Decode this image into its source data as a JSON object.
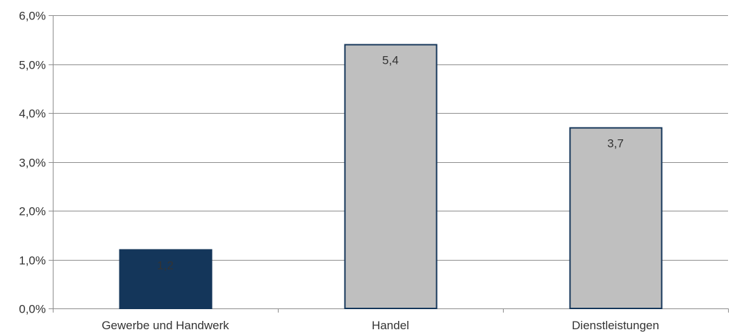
{
  "chart_data": {
    "type": "bar",
    "title": "",
    "xlabel": "",
    "ylabel": "",
    "categories": [
      "Gewerbe und Handwerk",
      "Handel",
      "Dienstleistungen"
    ],
    "values": [
      1.2,
      5.4,
      3.7
    ],
    "data_labels": [
      "1,2",
      "5,4",
      "3,7"
    ],
    "bar_colors": [
      "#14365a",
      "#bfbfbf",
      "#bfbfbf"
    ],
    "bar_border_color": "#14365a",
    "grid_color": "#8c8c8c",
    "ylim": [
      0,
      6
    ],
    "yticks": [
      0,
      1,
      2,
      3,
      4,
      5,
      6
    ],
    "ytick_labels": [
      "0,0%",
      "1,0%",
      "2,0%",
      "3,0%",
      "4,0%",
      "5,0%",
      "6,0%"
    ],
    "grid": true,
    "legend": "none"
  }
}
